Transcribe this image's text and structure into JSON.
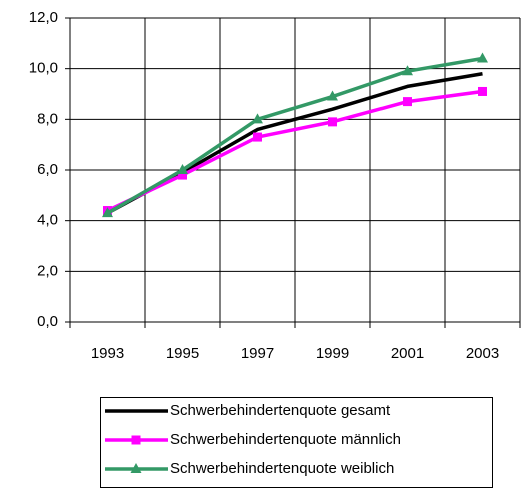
{
  "chart_data": {
    "type": "line",
    "categories": [
      "1993",
      "1995",
      "1997",
      "1999",
      "2001",
      "2003"
    ],
    "series": [
      {
        "name": "Schwerbehindertenquote gesamt",
        "color": "#000000",
        "marker": "none",
        "values": [
          4.3,
          5.9,
          7.6,
          8.4,
          9.3,
          9.8
        ]
      },
      {
        "name": "Schwerbehindertenquote männlich",
        "color": "#ff00ff",
        "marker": "square",
        "values": [
          4.4,
          5.8,
          7.3,
          7.9,
          8.7,
          9.1
        ]
      },
      {
        "name": "Schwerbehindertenquote weiblich",
        "color": "#339966",
        "marker": "triangle",
        "values": [
          4.3,
          6.0,
          8.0,
          8.9,
          9.9,
          10.4
        ]
      }
    ],
    "ylim": [
      0,
      12
    ],
    "yticks": [
      {
        "value": 0,
        "label": "0,0"
      },
      {
        "value": 2,
        "label": "2,0"
      },
      {
        "value": 4,
        "label": "4,0"
      },
      {
        "value": 6,
        "label": "6,0"
      },
      {
        "value": 8,
        "label": "8,0"
      },
      {
        "value": 10,
        "label": "10,0"
      },
      {
        "value": 12,
        "label": "12,0"
      }
    ],
    "grid": true,
    "legend": "bottom"
  }
}
